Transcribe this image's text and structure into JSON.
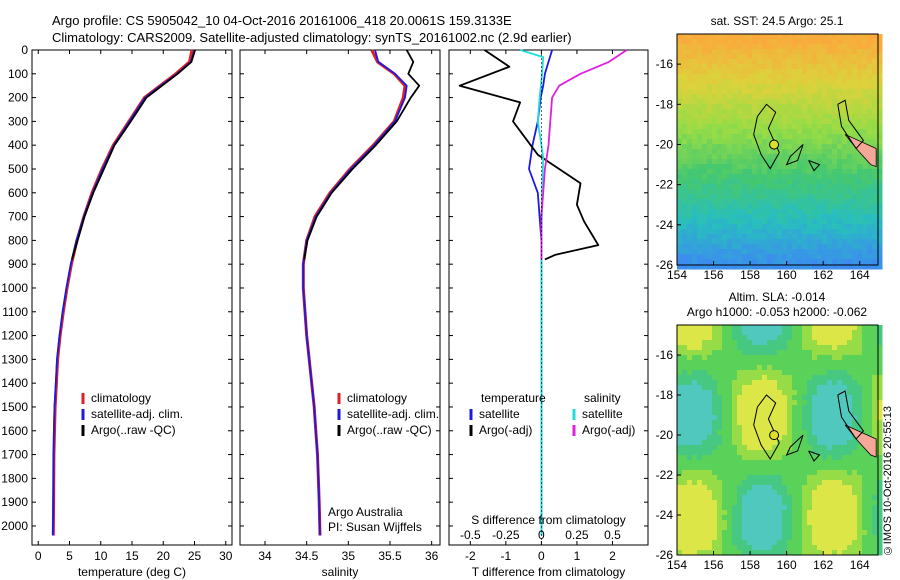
{
  "header": {
    "line1": "Argo profile: CS 5905042_10 04-Oct-2016 20161006_418 20.0061S 159.3133E",
    "line2": "Climatology: CARS2009. Satellite-adjusted climatology: synTS_20161002.nc (2.9d earlier)"
  },
  "stamp": "©IMOS 10-Oct-2016 20:55:13",
  "colors": {
    "climatology": "#e02020",
    "satellite": "#1a1ae6",
    "argo": "#000000",
    "sat_salinity": "#22dddd",
    "argo_salinity": "#dd22dd",
    "coast": "#f5a898"
  },
  "chart_data": [
    {
      "id": "temperature",
      "type": "line",
      "xlabel": "temperature (deg C)",
      "ylabel": "",
      "xlim": [
        -1,
        31
      ],
      "ylim": [
        2080,
        0
      ],
      "xticks": [
        0,
        5,
        10,
        15,
        20,
        25,
        30
      ],
      "yticks": [
        0,
        100,
        200,
        300,
        400,
        500,
        600,
        700,
        800,
        900,
        1000,
        1100,
        1200,
        1300,
        1400,
        1500,
        1600,
        1700,
        1800,
        1900,
        2000
      ],
      "legend": [
        "climatology",
        "satellite-adj. clim.",
        "Argo(..raw -QC)"
      ],
      "legend_position": "lower-center",
      "series": [
        {
          "name": "climatology",
          "color": "#e02020",
          "x": [
            24.6,
            24.2,
            22.0,
            19.5,
            17.0,
            14.5,
            12.0,
            10.2,
            8.6,
            7.3,
            6.2,
            5.3,
            4.6,
            4.0,
            3.5,
            3.1,
            2.9,
            2.7,
            2.6,
            2.5,
            2.45,
            2.4
          ],
          "y": [
            0,
            50,
            100,
            150,
            200,
            300,
            400,
            500,
            600,
            700,
            800,
            900,
            1000,
            1100,
            1200,
            1300,
            1400,
            1500,
            1600,
            1700,
            1900,
            2040
          ]
        },
        {
          "name": "satellite-adj. clim.",
          "color": "#1a1ae6",
          "x": [
            25.0,
            24.4,
            22.2,
            19.6,
            17.1,
            14.6,
            12.1,
            10.3,
            8.7,
            7.3,
            6.1,
            5.2,
            4.5,
            3.9,
            3.4,
            3.0,
            2.8,
            2.6,
            2.5,
            2.45,
            2.4,
            2.35
          ],
          "y": [
            0,
            50,
            100,
            150,
            200,
            300,
            400,
            500,
            600,
            700,
            800,
            900,
            1000,
            1100,
            1200,
            1300,
            1400,
            1500,
            1600,
            1700,
            1900,
            2040
          ]
        },
        {
          "name": "Argo(..raw -QC)",
          "color": "#000000",
          "x": [
            25.1,
            24.5,
            22.3,
            19.8,
            17.3,
            14.8,
            12.2,
            10.5,
            8.8,
            7.4,
            6.3,
            5.4
          ],
          "y": [
            0,
            50,
            100,
            150,
            200,
            300,
            400,
            500,
            600,
            700,
            800,
            880
          ]
        }
      ]
    },
    {
      "id": "salinity",
      "type": "line",
      "xlabel": "salinity",
      "ylabel": "",
      "xlim": [
        33.7,
        36.1
      ],
      "ylim": [
        2080,
        0
      ],
      "xticks": [
        34,
        34.5,
        35,
        35.5,
        36
      ],
      "legend": [
        "climatology",
        "satellite-adj. clim.",
        "Argo(..raw -QC)"
      ],
      "legend_position": "lower-right",
      "annotation": [
        "Argo Australia",
        "PI: Susan Wijffels"
      ],
      "series": [
        {
          "name": "climatology",
          "color": "#e02020",
          "x": [
            35.28,
            35.35,
            35.55,
            35.68,
            35.66,
            35.55,
            35.3,
            35.02,
            34.78,
            34.6,
            34.5,
            34.46,
            34.46,
            34.48,
            34.5,
            34.53,
            34.56,
            34.59,
            34.61,
            34.63,
            34.65,
            34.66
          ],
          "y": [
            0,
            50,
            100,
            150,
            200,
            300,
            400,
            500,
            600,
            700,
            800,
            900,
            1000,
            1100,
            1200,
            1300,
            1400,
            1500,
            1600,
            1700,
            1900,
            2040
          ]
        },
        {
          "name": "satellite-adj. clim.",
          "color": "#1a1ae6",
          "x": [
            35.32,
            35.36,
            35.56,
            35.7,
            35.68,
            35.56,
            35.31,
            35.03,
            34.79,
            34.61,
            34.5,
            34.46,
            34.46,
            34.48,
            34.5,
            34.53,
            34.56,
            34.59,
            34.61,
            34.63,
            34.65,
            34.66
          ],
          "y": [
            0,
            50,
            100,
            150,
            200,
            300,
            400,
            500,
            600,
            700,
            800,
            900,
            1000,
            1100,
            1200,
            1300,
            1400,
            1500,
            1600,
            1700,
            1900,
            2040
          ]
        },
        {
          "name": "Argo(..raw -QC)",
          "color": "#000000",
          "x": [
            35.7,
            35.78,
            35.72,
            35.85,
            35.75,
            35.58,
            35.33,
            35.05,
            34.8,
            34.62,
            34.51,
            34.47
          ],
          "y": [
            0,
            50,
            100,
            150,
            200,
            300,
            400,
            500,
            600,
            700,
            800,
            880
          ]
        }
      ]
    },
    {
      "id": "differences",
      "type": "line",
      "xlabel": "T difference from climatology",
      "x2label": "S difference from climatology",
      "xlim": [
        -2.6,
        3.0
      ],
      "ylim": [
        2080,
        0
      ],
      "xticks": [
        -2,
        -1,
        0,
        1,
        2
      ],
      "xtick_labels": [
        "-2",
        "-1",
        "0",
        "1",
        "2"
      ],
      "x2ticks": [
        -0.5,
        -0.25,
        0,
        0.25,
        0.5
      ],
      "x2tick_labels": [
        "-0.5",
        "-0.25",
        "0",
        "0.25",
        "0.5"
      ],
      "legend": [
        {
          "group": "temperature",
          "items": [
            "satellite",
            "Argo(-adj)"
          ]
        },
        {
          "group": "salinity",
          "items": [
            "satellite",
            "Argo(-adj)"
          ]
        }
      ],
      "series": [
        {
          "name": "temperature satellite",
          "color": "#1a1ae6",
          "x": [
            0.3,
            0.2,
            0.1,
            0.05,
            -0.02,
            -0.1,
            -0.25,
            -0.35,
            -0.1,
            -0.05,
            0.0,
            0.0,
            0.0,
            0.0
          ],
          "y": [
            0,
            50,
            100,
            150,
            200,
            300,
            400,
            500,
            600,
            700,
            800,
            1000,
            1500,
            2040
          ]
        },
        {
          "name": "temperature Argo(-adj)",
          "color": "#000000",
          "x": [
            -1.6,
            -0.9,
            -2.3,
            -0.6,
            -0.8,
            -0.3,
            -0.1,
            0.5,
            1.1,
            1.0,
            1.2,
            1.6,
            0.4,
            0.1
          ],
          "y": [
            0,
            70,
            150,
            220,
            300,
            400,
            440,
            500,
            560,
            650,
            720,
            820,
            860,
            880
          ]
        },
        {
          "name": "salinity satellite",
          "color": "#22dddd",
          "x": [
            -0.6,
            0.05,
            0.02,
            -0.05,
            -0.1,
            0.05,
            0.02,
            0.0,
            0.0,
            0.0,
            0.0
          ],
          "y": [
            0,
            30,
            100,
            200,
            300,
            450,
            600,
            800,
            1000,
            1500,
            2040
          ]
        },
        {
          "name": "salinity Argo(-adj)",
          "color": "#dd22dd",
          "x": [
            2.4,
            1.9,
            1.1,
            0.5,
            0.3,
            0.2,
            0.1,
            0.05,
            0.0,
            0.0
          ],
          "y": [
            0,
            50,
            100,
            150,
            200,
            400,
            500,
            600,
            700,
            880
          ]
        }
      ]
    },
    {
      "id": "sst-map",
      "type": "heatmap",
      "title": "sat. SST: 24.5 Argo: 25.1",
      "xlim": [
        154,
        165
      ],
      "ylim": [
        -26,
        -14.5
      ],
      "xticks": [
        154,
        156,
        158,
        160,
        162,
        164
      ],
      "yticks": [
        -26,
        -24,
        -22,
        -20,
        -18,
        -16
      ],
      "profile_location": [
        159.3133,
        -20.0061
      ]
    },
    {
      "id": "sla-map",
      "type": "heatmap",
      "title_lines": [
        "Altim. SLA: -0.014",
        "Argo h1000: -0.053 h2000: -0.062"
      ],
      "xlim": [
        154,
        165
      ],
      "ylim": [
        -26,
        -14.5
      ],
      "xticks": [
        154,
        156,
        158,
        160,
        162,
        164
      ],
      "yticks": [
        -26,
        -24,
        -22,
        -20,
        -18,
        -16
      ],
      "profile_location": [
        159.3133,
        -20.0061
      ]
    }
  ]
}
